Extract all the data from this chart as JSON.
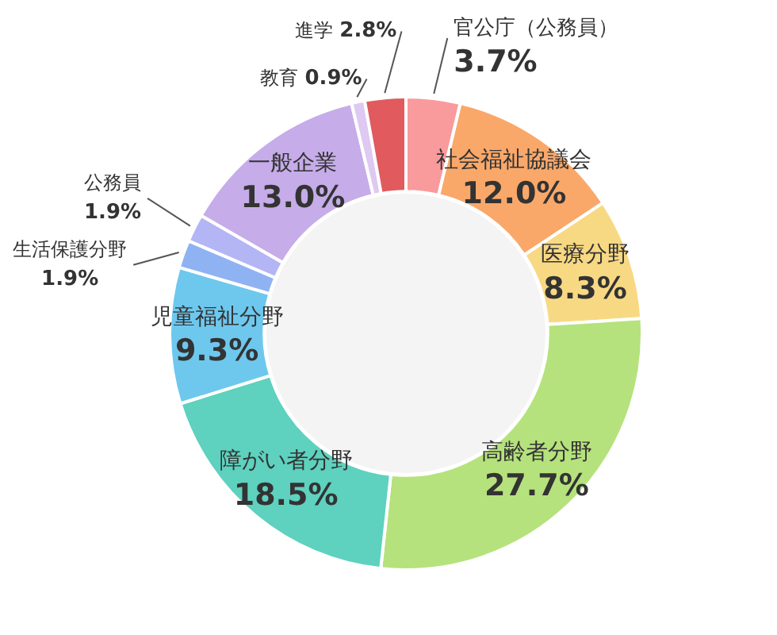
{
  "chart_data": {
    "type": "donut",
    "categories": [
      "官公庁（公務員）",
      "社会福祉協議会",
      "医療分野",
      "高齢者分野",
      "障がい者分野",
      "児童福祉分野",
      "生活保護分野",
      "公務員",
      "一般企業",
      "教育",
      "進学"
    ],
    "values": [
      3.7,
      12.0,
      8.3,
      27.7,
      18.5,
      9.3,
      1.9,
      1.9,
      13.0,
      0.9,
      2.8
    ],
    "value_labels": [
      "3.7%",
      "12.0%",
      "8.3%",
      "27.7%",
      "18.5%",
      "9.3%",
      "1.9%",
      "1.9%",
      "13.0%",
      "0.9%",
      "2.8%"
    ],
    "colors": [
      "#f99a9c",
      "#f9a86a",
      "#f8d983",
      "#b5e27c",
      "#5ed1bf",
      "#6ec8ee",
      "#8fb3f2",
      "#b3b5f5",
      "#c6ace9",
      "#ddc9f1",
      "#e05a5e"
    ],
    "legend": false
  }
}
